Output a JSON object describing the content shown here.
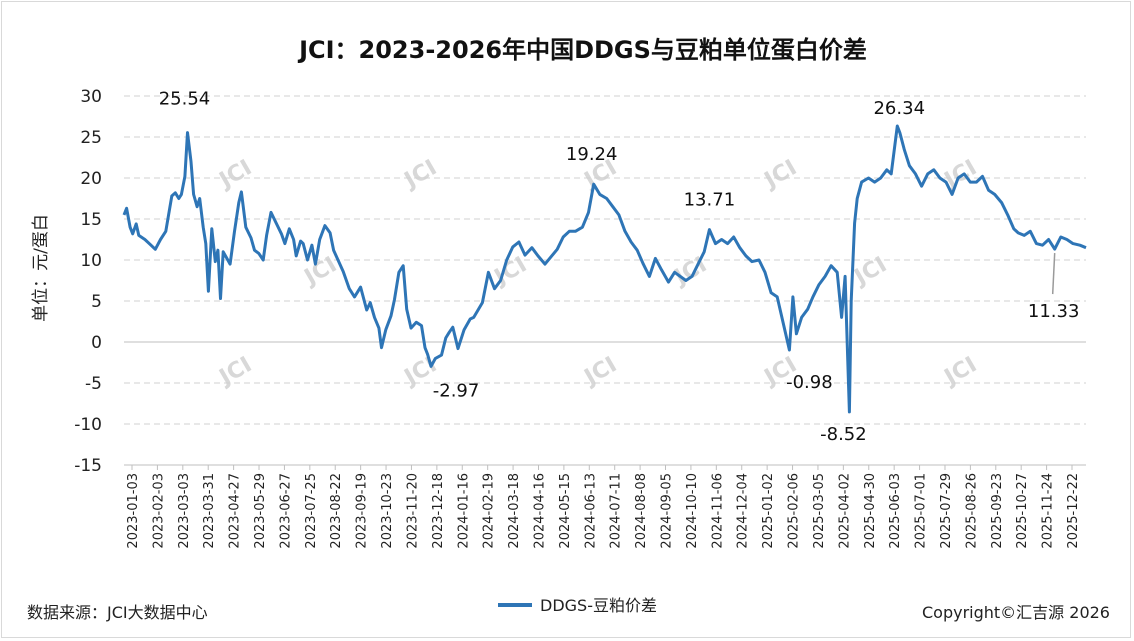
{
  "chart_data": {
    "type": "line",
    "title": "JCI：2023-2026年中国DDGS与豆粕单位蛋白价差",
    "ylabel": "单位：元/蛋白",
    "ylim": [
      -15,
      30
    ],
    "yticks": [
      30,
      25,
      20,
      15,
      10,
      5,
      0,
      -5,
      -10,
      -15
    ],
    "grid": true,
    "legend_position": "bottom-center",
    "x_start": "2023-01-03",
    "x_end": "2026-01-13",
    "x_tick_labels": [
      "2023-01-03",
      "2023-02-03",
      "2023-03-03",
      "2023-03-31",
      "2023-04-27",
      "2023-05-29",
      "2023-06-27",
      "2023-07-25",
      "2023-08-22",
      "2023-09-19",
      "2023-10-23",
      "2023-11-20",
      "2023-12-18",
      "2024-01-16",
      "2024-02-19",
      "2024-03-18",
      "2024-04-16",
      "2024-05-15",
      "2024-06-13",
      "2024-07-11",
      "2024-08-08",
      "2024-09-05",
      "2024-10-10",
      "2024-11-06",
      "2024-12-04",
      "2025-01-02",
      "2025-02-06",
      "2025-03-05",
      "2025-04-02",
      "2025-04-30",
      "2025-06-03",
      "2025-07-01",
      "2025-07-29",
      "2025-08-26",
      "2025-09-23",
      "2025-10-27",
      "2025-11-24",
      "2025-12-22"
    ],
    "series": [
      {
        "name": "DDGS-豆粕价差",
        "color": "#2e75b6",
        "points": [
          [
            "2023-01-03",
            15.5
          ],
          [
            "2023-01-06",
            16.3
          ],
          [
            "2023-01-10",
            14.0
          ],
          [
            "2023-01-13",
            13.2
          ],
          [
            "2023-01-17",
            14.4
          ],
          [
            "2023-01-20",
            13.0
          ],
          [
            "2023-01-27",
            12.5
          ],
          [
            "2023-02-03",
            11.8
          ],
          [
            "2023-02-08",
            11.3
          ],
          [
            "2023-02-14",
            12.5
          ],
          [
            "2023-02-20",
            13.5
          ],
          [
            "2023-02-27",
            17.8
          ],
          [
            "2023-03-03",
            18.2
          ],
          [
            "2023-03-07",
            17.5
          ],
          [
            "2023-03-10",
            18.0
          ],
          [
            "2023-03-14",
            20.2
          ],
          [
            "2023-03-17",
            25.54
          ],
          [
            "2023-03-21",
            22.0
          ],
          [
            "2023-03-24",
            18.0
          ],
          [
            "2023-03-28",
            16.5
          ],
          [
            "2023-03-31",
            17.5
          ],
          [
            "2023-04-04",
            14.0
          ],
          [
            "2023-04-07",
            12.0
          ],
          [
            "2023-04-10",
            6.2
          ],
          [
            "2023-04-14",
            13.8
          ],
          [
            "2023-04-18",
            9.8
          ],
          [
            "2023-04-21",
            11.2
          ],
          [
            "2023-04-24",
            5.3
          ],
          [
            "2023-04-27",
            11.0
          ],
          [
            "2023-05-05",
            9.5
          ],
          [
            "2023-05-10",
            13.5
          ],
          [
            "2023-05-15",
            17.0
          ],
          [
            "2023-05-18",
            18.3
          ],
          [
            "2023-05-23",
            14.0
          ],
          [
            "2023-05-29",
            12.7
          ],
          [
            "2023-06-02",
            11.2
          ],
          [
            "2023-06-07",
            10.8
          ],
          [
            "2023-06-12",
            10.0
          ],
          [
            "2023-06-16",
            13.0
          ],
          [
            "2023-06-21",
            15.8
          ],
          [
            "2023-06-27",
            14.5
          ],
          [
            "2023-07-03",
            13.2
          ],
          [
            "2023-07-07",
            12.0
          ],
          [
            "2023-07-12",
            13.8
          ],
          [
            "2023-07-17",
            12.5
          ],
          [
            "2023-07-20",
            10.5
          ],
          [
            "2023-07-25",
            12.3
          ],
          [
            "2023-07-28",
            12.0
          ],
          [
            "2023-08-02",
            10.0
          ],
          [
            "2023-08-07",
            11.8
          ],
          [
            "2023-08-11",
            9.5
          ],
          [
            "2023-08-16",
            12.5
          ],
          [
            "2023-08-22",
            14.2
          ],
          [
            "2023-08-28",
            13.3
          ],
          [
            "2023-09-01",
            11.2
          ],
          [
            "2023-09-06",
            10.0
          ],
          [
            "2023-09-12",
            8.6
          ],
          [
            "2023-09-19",
            6.5
          ],
          [
            "2023-09-25",
            5.5
          ],
          [
            "2023-10-02",
            6.7
          ],
          [
            "2023-10-09",
            3.9
          ],
          [
            "2023-10-13",
            4.8
          ],
          [
            "2023-10-18",
            3.0
          ],
          [
            "2023-10-23",
            1.7
          ],
          [
            "2023-10-26",
            -0.7
          ],
          [
            "2023-10-31",
            1.5
          ],
          [
            "2023-11-06",
            3.2
          ],
          [
            "2023-11-10",
            5.2
          ],
          [
            "2023-11-15",
            8.5
          ],
          [
            "2023-11-20",
            9.3
          ],
          [
            "2023-11-24",
            4.0
          ],
          [
            "2023-11-29",
            1.7
          ],
          [
            "2023-12-05",
            2.4
          ],
          [
            "2023-12-11",
            2.0
          ],
          [
            "2023-12-15",
            -0.7
          ],
          [
            "2023-12-18",
            -1.5
          ],
          [
            "2023-12-22",
            -2.97
          ],
          [
            "2023-12-27",
            -2.0
          ],
          [
            "2024-01-03",
            -1.6
          ],
          [
            "2024-01-08",
            0.5
          ],
          [
            "2024-01-12",
            1.2
          ],
          [
            "2024-01-16",
            1.8
          ],
          [
            "2024-01-22",
            -0.8
          ],
          [
            "2024-01-29",
            1.5
          ],
          [
            "2024-02-05",
            2.8
          ],
          [
            "2024-02-09",
            3.0
          ],
          [
            "2024-02-19",
            4.8
          ],
          [
            "2024-02-26",
            8.5
          ],
          [
            "2024-03-04",
            6.5
          ],
          [
            "2024-03-11",
            7.5
          ],
          [
            "2024-03-18",
            10.0
          ],
          [
            "2024-03-25",
            11.6
          ],
          [
            "2024-04-01",
            12.2
          ],
          [
            "2024-04-08",
            10.6
          ],
          [
            "2024-04-16",
            11.5
          ],
          [
            "2024-04-23",
            10.5
          ],
          [
            "2024-05-01",
            9.5
          ],
          [
            "2024-05-08",
            10.4
          ],
          [
            "2024-05-15",
            11.3
          ],
          [
            "2024-05-22",
            12.8
          ],
          [
            "2024-05-29",
            13.5
          ],
          [
            "2024-06-05",
            13.5
          ],
          [
            "2024-06-13",
            14.0
          ],
          [
            "2024-06-20",
            15.8
          ],
          [
            "2024-06-26",
            19.24
          ],
          [
            "2024-07-03",
            18.0
          ],
          [
            "2024-07-11",
            17.5
          ],
          [
            "2024-07-18",
            16.5
          ],
          [
            "2024-07-25",
            15.5
          ],
          [
            "2024-08-01",
            13.5
          ],
          [
            "2024-08-08",
            12.2
          ],
          [
            "2024-08-15",
            11.2
          ],
          [
            "2024-08-22",
            9.5
          ],
          [
            "2024-08-29",
            8.0
          ],
          [
            "2024-09-05",
            10.2
          ],
          [
            "2024-09-12",
            8.8
          ],
          [
            "2024-09-20",
            7.3
          ],
          [
            "2024-09-27",
            8.5
          ],
          [
            "2024-10-10",
            7.5
          ],
          [
            "2024-10-17",
            8.0
          ],
          [
            "2024-10-24",
            9.5
          ],
          [
            "2024-10-31",
            11.0
          ],
          [
            "2024-11-06",
            13.71
          ],
          [
            "2024-11-13",
            12.0
          ],
          [
            "2024-11-20",
            12.5
          ],
          [
            "2024-11-27",
            12.0
          ],
          [
            "2024-12-04",
            12.8
          ],
          [
            "2024-12-11",
            11.5
          ],
          [
            "2024-12-18",
            10.5
          ],
          [
            "2024-12-25",
            9.8
          ],
          [
            "2025-01-02",
            10.0
          ],
          [
            "2025-01-09",
            8.5
          ],
          [
            "2025-01-16",
            6.0
          ],
          [
            "2025-01-23",
            5.5
          ],
          [
            "2025-02-06",
            -0.98
          ],
          [
            "2025-02-10",
            5.5
          ],
          [
            "2025-02-14",
            1.0
          ],
          [
            "2025-02-20",
            3.0
          ],
          [
            "2025-02-27",
            4.0
          ],
          [
            "2025-03-05",
            5.5
          ],
          [
            "2025-03-12",
            7.0
          ],
          [
            "2025-03-19",
            8.0
          ],
          [
            "2025-03-26",
            9.3
          ],
          [
            "2025-04-02",
            8.5
          ],
          [
            "2025-04-07",
            3.0
          ],
          [
            "2025-04-11",
            8.0
          ],
          [
            "2025-04-16",
            -8.52
          ],
          [
            "2025-04-18",
            5.0
          ],
          [
            "2025-04-22",
            14.5
          ],
          [
            "2025-04-25",
            17.5
          ],
          [
            "2025-04-30",
            19.5
          ],
          [
            "2025-05-08",
            20.0
          ],
          [
            "2025-05-15",
            19.5
          ],
          [
            "2025-05-22",
            20.0
          ],
          [
            "2025-05-29",
            21.0
          ],
          [
            "2025-06-03",
            20.5
          ],
          [
            "2025-06-10",
            26.34
          ],
          [
            "2025-06-13",
            25.5
          ],
          [
            "2025-06-18",
            23.5
          ],
          [
            "2025-06-24",
            21.5
          ],
          [
            "2025-07-01",
            20.5
          ],
          [
            "2025-07-08",
            19.0
          ],
          [
            "2025-07-15",
            20.5
          ],
          [
            "2025-07-22",
            21.0
          ],
          [
            "2025-07-29",
            20.0
          ],
          [
            "2025-08-05",
            19.5
          ],
          [
            "2025-08-12",
            18.0
          ],
          [
            "2025-08-19",
            20.0
          ],
          [
            "2025-08-26",
            20.5
          ],
          [
            "2025-09-02",
            19.5
          ],
          [
            "2025-09-09",
            19.5
          ],
          [
            "2025-09-16",
            20.2
          ],
          [
            "2025-09-23",
            18.5
          ],
          [
            "2025-09-30",
            18.0
          ],
          [
            "2025-10-08",
            17.0
          ],
          [
            "2025-10-15",
            15.5
          ],
          [
            "2025-10-22",
            13.8
          ],
          [
            "2025-10-27",
            13.3
          ],
          [
            "2025-11-03",
            13.0
          ],
          [
            "2025-11-10",
            13.5
          ],
          [
            "2025-11-17",
            12.0
          ],
          [
            "2025-11-24",
            11.8
          ],
          [
            "2025-12-01",
            12.5
          ],
          [
            "2025-12-08",
            11.33
          ],
          [
            "2025-12-15",
            12.8
          ],
          [
            "2025-12-22",
            12.5
          ],
          [
            "2025-12-29",
            12.0
          ],
          [
            "2026-01-06",
            11.8
          ],
          [
            "2026-01-13",
            11.5
          ]
        ]
      }
    ],
    "annotations": [
      {
        "date": "2023-03-17",
        "value": 25.54,
        "text": "25.54",
        "color": "#000000"
      },
      {
        "date": "2023-12-22",
        "value": -2.97,
        "text": "-2.97",
        "color": "#000000"
      },
      {
        "date": "2024-06-26",
        "value": 19.24,
        "text": "19.24",
        "color": "#000000"
      },
      {
        "date": "2024-11-06",
        "value": 13.71,
        "text": "13.71",
        "color": "#000000"
      },
      {
        "date": "2025-02-06",
        "value": -0.98,
        "text": "-0.98",
        "color": "#000000"
      },
      {
        "date": "2025-04-16",
        "value": -8.52,
        "text": "-8.52",
        "color": "#00a651"
      },
      {
        "date": "2025-06-10",
        "value": 26.34,
        "text": "26.34",
        "color": "#ff0000"
      },
      {
        "date": "2025-12-08",
        "value": 11.33,
        "text": "11.33",
        "color": "#000000"
      }
    ],
    "negative_tick_color": "#ff0000",
    "source": "数据来源：JCI大数据中心",
    "copyright": "Copyright©汇吉源 2026",
    "watermark": "JCI"
  }
}
